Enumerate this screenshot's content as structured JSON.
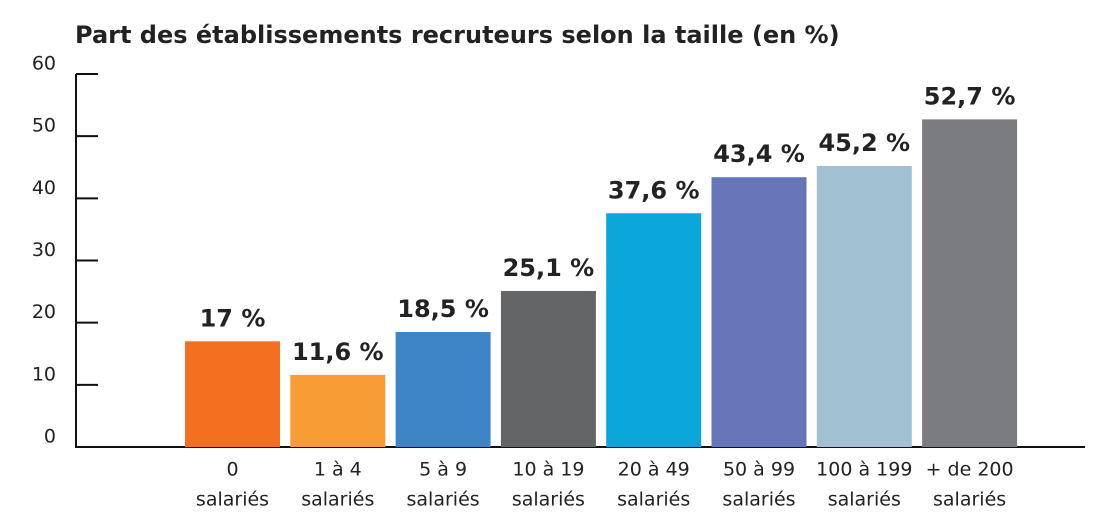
{
  "chart_data": {
    "type": "bar",
    "title": "Part des établissements recruteurs selon la taille (en %)",
    "categories": [
      [
        "0",
        "salariés"
      ],
      [
        "1 à 4",
        "salariés"
      ],
      [
        "5 à 9",
        "salariés"
      ],
      [
        "10 à 19",
        "salariés"
      ],
      [
        "20 à 49",
        "salariés"
      ],
      [
        "50 à 99",
        "salariés"
      ],
      [
        "100 à 199",
        "salariés"
      ],
      [
        "+ de 200",
        "salariés"
      ]
    ],
    "values": [
      17,
      11.6,
      18.5,
      25.1,
      37.6,
      43.4,
      45.2,
      52.7
    ],
    "value_labels": [
      "17 %",
      "11,6 %",
      "18,5 %",
      "25,1 %",
      "37,6 %",
      "43,4 %",
      "45,2 %",
      "52,7 %"
    ],
    "colors": [
      "#f37021",
      "#f89c35",
      "#3d85c6",
      "#636466",
      "#0aa6da",
      "#6674b8",
      "#a1c0d2",
      "#7b7c80"
    ],
    "ylim": [
      0,
      60
    ],
    "yticks": [
      0,
      10,
      20,
      30,
      40,
      50,
      60
    ],
    "grid": false
  }
}
